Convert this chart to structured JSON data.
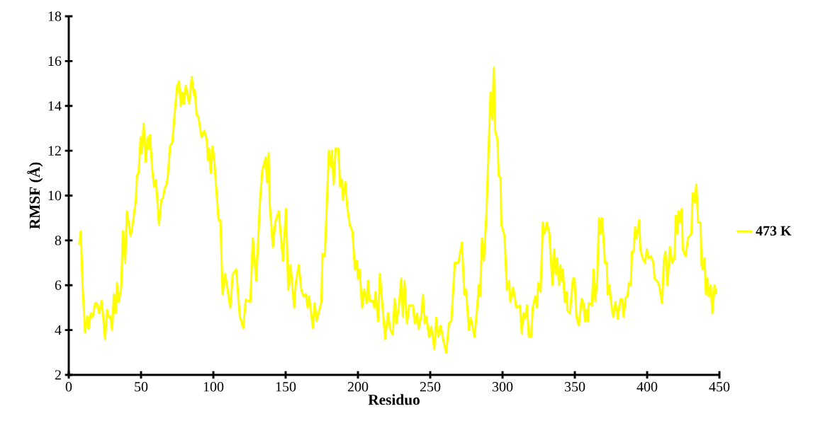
{
  "chart_data": {
    "type": "line",
    "xlabel": "Residuo",
    "ylabel": "RMSF (Å)",
    "xlim": [
      0,
      450
    ],
    "ylim": [
      2,
      18
    ],
    "xticks": [
      0,
      50,
      100,
      150,
      200,
      250,
      300,
      350,
      400,
      450
    ],
    "yticks": [
      2,
      4,
      6,
      8,
      10,
      12,
      14,
      16,
      18
    ],
    "legend": "right",
    "series": [
      {
        "name": "473 K",
        "color": "#ffff00",
        "x": [
          7.2,
          8.3,
          9.6,
          11.3,
          12.9,
          13.7,
          15.3,
          16.6,
          18.3,
          19.4,
          21.1,
          22.7,
          23.8,
          25.1,
          26.5,
          27.6,
          28.7,
          30,
          31.2,
          32.5,
          33.3,
          34.6,
          36.3,
          37.4,
          39,
          40.2,
          42.8,
          44.4,
          46.4,
          47.2,
          48.3,
          49.7,
          50.6,
          51.8,
          53.2,
          54.6,
          55.4,
          56.2,
          57.8,
          59.1,
          60.3,
          62.4,
          64,
          65.2,
          66.3,
          67.6,
          68.4,
          70.1,
          71.7,
          73.3,
          75,
          76.3,
          77.4,
          78.6,
          79.6,
          81,
          83.2,
          85.1,
          86.4,
          87.2,
          88.4,
          89.7,
          91.8,
          93.8,
          95.4,
          96.2,
          97,
          98.2,
          99.5,
          100.6,
          103.6,
          104.9,
          106.4,
          108.2,
          110.1,
          111.7,
          113.4,
          115.8,
          118.3,
          120.7,
          122.4,
          125.6,
          127.3,
          129.7,
          132.2,
          133.8,
          136.3,
          137.1,
          138.2,
          139,
          141.2,
          142.8,
          145.2,
          148.2,
          150.2,
          151.8,
          153.4,
          155.9,
          157,
          159.1,
          160.8,
          162.4,
          164,
          165.2,
          166.2,
          168.9,
          170.1,
          171.4,
          174.7,
          175.5,
          177.1,
          179.9,
          181.2,
          182,
          183.2,
          184.5,
          186.4,
          187.7,
          189,
          189.7,
          191.3,
          192.6,
          194.3,
          196.2,
          197.9,
          199.2,
          200,
          201.1,
          202.9,
          204.4,
          206,
          207,
          208.2,
          210.3,
          211.4,
          212.2,
          213.9,
          215.2,
          216.8,
          218.8,
          220.8,
          222.4,
          224.1,
          225.4,
          226.7,
          228.3,
          230,
          231.1,
          232.2,
          233.9,
          235.5,
          238.1,
          239.3,
          240.9,
          242,
          243.7,
          245,
          246.1,
          247.4,
          249.1,
          250.7,
          252.8,
          254.1,
          255.6,
          257.2,
          258.9,
          261,
          263,
          264.6,
          267,
          269.5,
          271.9,
          273.6,
          274.7,
          276.8,
          278,
          280.6,
          282.6,
          283.5,
          284.5,
          285.8,
          287.1,
          288.8,
          290.4,
          291.7,
          292.9,
          294,
          294.8,
          296.5,
          297.3,
          298.6,
          299.2,
          301.4,
          303,
          304.6,
          305.4,
          307.4,
          309.5,
          312,
          313.3,
          314.4,
          315.6,
          316.9,
          318.2,
          319.8,
          320.9,
          322.6,
          323.7,
          324.7,
          326.3,
          327.9,
          329.1,
          330.7,
          332.4,
          334.5,
          335.8,
          336.8,
          337.8,
          339.1,
          340,
          341,
          341.8,
          343,
          344.3,
          344.9,
          346.6,
          348.7,
          349.8,
          351.1,
          352.8,
          354.7,
          356,
          357,
          358,
          359,
          359.6,
          361.8,
          362.9,
          364.2,
          365.5,
          366.7,
          367.8,
          368.8,
          369.9,
          370.8,
          372.1,
          372.7,
          374,
          375.3,
          376.5,
          378.1,
          379.7,
          381.4,
          382.5,
          383.8,
          385.1,
          386.4,
          387.4,
          388.7,
          389.5,
          390.7,
          391.7,
          392.8,
          394.5,
          395.3,
          396.9,
          398.5,
          399.8,
          401,
          402.6,
          404.3,
          405.1,
          406.7,
          408.3,
          410.3,
          411.6,
          412.6,
          414.1,
          415.7,
          417.3,
          419,
          419.8,
          421.1,
          421.7,
          423,
          423.9,
          424.7,
          426.6,
          428.3,
          430.6,
          431.5,
          432.9,
          434,
          435.3,
          436.9,
          437.7,
          438.6,
          439.7,
          440.7,
          441.8,
          442.7,
          444,
          445.1,
          446.7,
          447.9
        ],
        "values": [
          7.8,
          8.4,
          5.9,
          3.9,
          4.6,
          4.05,
          4.75,
          4.6,
          5.2,
          5.2,
          4.75,
          5.3,
          4.6,
          3.6,
          4.9,
          4.6,
          4.6,
          4.0,
          5.6,
          4.75,
          6.1,
          5.25,
          5.9,
          8.4,
          7.0,
          9.3,
          8.2,
          8.8,
          9.8,
          10.9,
          11.0,
          12.6,
          11.9,
          13.2,
          11.5,
          12.6,
          12.1,
          12.7,
          11.1,
          10.4,
          10.7,
          8.7,
          9.8,
          9.9,
          10.3,
          10.5,
          10.8,
          12.2,
          12.4,
          13.7,
          14.9,
          15.1,
          14.0,
          14.6,
          14.1,
          14.9,
          14.1,
          15.3,
          14.5,
          14.7,
          13.6,
          13.5,
          12.6,
          12.9,
          12.5,
          11.6,
          12.1,
          11.0,
          12.2,
          11.6,
          8.9,
          8.9,
          5.6,
          6.5,
          5.7,
          5.0,
          6.5,
          6.7,
          4.6,
          4.1,
          5.36,
          5.25,
          8.1,
          6.2,
          9.7,
          11.1,
          11.7,
          10.6,
          11.9,
          9.6,
          7.7,
          8.8,
          9.3,
          7.1,
          9.4,
          5.8,
          6.9,
          5.0,
          6.1,
          6.9,
          5.8,
          5.5,
          5.6,
          5.0,
          5.5,
          4.1,
          5.2,
          4.4,
          5.25,
          7.4,
          7.3,
          12.0,
          11.3,
          12.0,
          10.5,
          12.1,
          12.1,
          10.4,
          10.7,
          9.8,
          10.6,
          9.5,
          8.7,
          8.4,
          6.7,
          7.1,
          6.3,
          6.7,
          5.0,
          5.8,
          5.2,
          6.2,
          5.3,
          5.3,
          5.0,
          5.7,
          4.4,
          6.5,
          5.2,
          3.6,
          4.75,
          4.0,
          3.8,
          5.4,
          4.3,
          5.1,
          6.3,
          4.6,
          6.2,
          4.3,
          5.1,
          5.1,
          4.3,
          4.75,
          4.05,
          4.6,
          5.57,
          4.3,
          4.6,
          3.7,
          4.15,
          3.15,
          4.55,
          3.7,
          4.2,
          3.6,
          3.0,
          4.3,
          4.4,
          7.0,
          7.0,
          7.9,
          5.6,
          5.8,
          4.0,
          4.55,
          3.7,
          5.1,
          6.0,
          5.5,
          8.1,
          7.1,
          9.1,
          12.1,
          14.6,
          13.4,
          15.7,
          12.9,
          12.5,
          10.9,
          10.8,
          8.7,
          8.2,
          5.8,
          6.2,
          5.25,
          5.9,
          5.0,
          5.1,
          3.85,
          4.75,
          4.5,
          5.1,
          3.7,
          3.7,
          5.0,
          5.5,
          5.0,
          6.1,
          5.7,
          8.8,
          8.3,
          8.8,
          8.3,
          6.0,
          7.6,
          6.5,
          7.2,
          6.0,
          6.9,
          6.2,
          6.7,
          5.25,
          5.7,
          4.85,
          4.75,
          6.3,
          6.3,
          4.6,
          4.2,
          5.4,
          5.2,
          4.4,
          4.9,
          4.4,
          5.2,
          5.1,
          6.7,
          5.3,
          6.3,
          9.0,
          8.3,
          9.0,
          8.0,
          7.0,
          7.0,
          5.6,
          6.0,
          5.1,
          4.6,
          5.25,
          4.5,
          5.35,
          5.4,
          4.6,
          5.45,
          5.5,
          6.1,
          6.0,
          7.5,
          7.5,
          8.6,
          8.1,
          8.9,
          7.6,
          7.2,
          7.0,
          7.6,
          7.2,
          7.3,
          7.0,
          6.3,
          6.2,
          6.0,
          5.2,
          7.1,
          7.5,
          6.0,
          7.7,
          7.0,
          7.2,
          9.1,
          8.3,
          9.3,
          8.8,
          9.4,
          7.6,
          7.3,
          8.1,
          8.3,
          10.1,
          9.7,
          10.5,
          8.8,
          8.8,
          6.9,
          6.7,
          7.2,
          5.6,
          6.3,
          5.5,
          6.0,
          4.75,
          6.0,
          5.6
        ]
      }
    ]
  }
}
